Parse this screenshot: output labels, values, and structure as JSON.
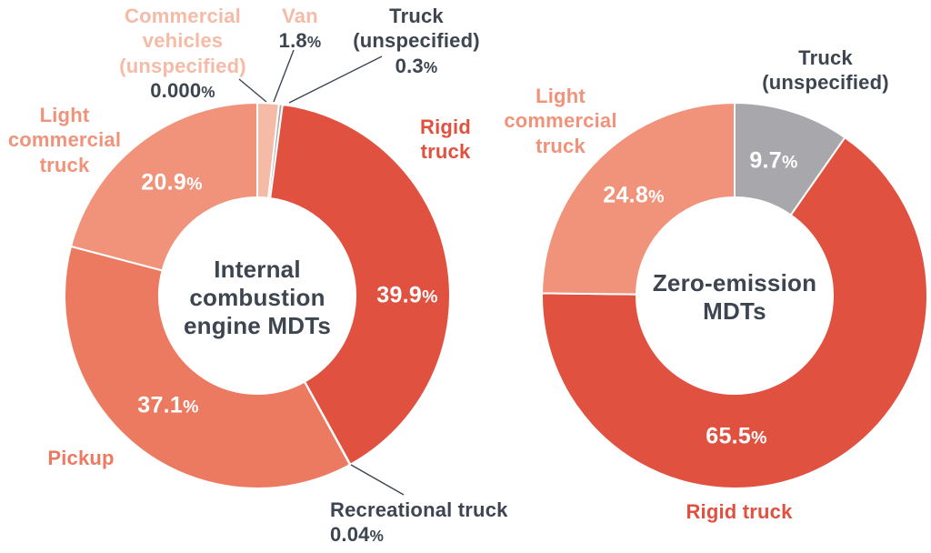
{
  "colors": {
    "background": "#FFFFFF",
    "dark_text": "#3D4551",
    "separator": "#FFFFFF",
    "rigid_truck": "#E05140",
    "pickup": "#EC7A60",
    "light_commercial_truck": "#F0937A",
    "van_peach": "#F5BBA6",
    "truck_unspecified_gray": "#A8A7AC"
  },
  "chart_data": [
    {
      "type": "pie",
      "variant": "donut",
      "title": "Internal combustion engine MDTs",
      "center_label_lines": [
        "Internal",
        "combustion",
        "engine MDTs"
      ],
      "start_angle_deg": 0,
      "direction": "clockwise",
      "legend_position": "outside-callouts",
      "segments": [
        {
          "label": "Commercial vehicles (unspecified)",
          "value_pct": 0.0,
          "display": "0.000%",
          "color_key": "van_peach"
        },
        {
          "label": "Van",
          "value_pct": 1.8,
          "display": "1.8%",
          "color_key": "van_peach"
        },
        {
          "label": "Truck (unspecified)",
          "value_pct": 0.3,
          "display": "0.3%",
          "color_key": "truck_unspecified_gray"
        },
        {
          "label": "Rigid truck",
          "value_pct": 39.9,
          "display": "39.9%",
          "color_key": "rigid_truck"
        },
        {
          "label": "Recreational truck",
          "value_pct": 0.04,
          "display": "0.04%",
          "color_key": "van_peach"
        },
        {
          "label": "Pickup",
          "value_pct": 37.1,
          "display": "37.1%",
          "color_key": "pickup"
        },
        {
          "label": "Light commercial truck",
          "value_pct": 20.9,
          "display": "20.9%",
          "color_key": "light_commercial_truck"
        }
      ]
    },
    {
      "type": "pie",
      "variant": "donut",
      "title": "Zero-emission MDTs",
      "center_label_lines": [
        "Zero-emission",
        "MDTs"
      ],
      "start_angle_deg": 0,
      "direction": "clockwise",
      "legend_position": "outside-callouts",
      "segments": [
        {
          "label": "Truck (unspecified)",
          "value_pct": 9.7,
          "display": "9.7%",
          "color_key": "truck_unspecified_gray"
        },
        {
          "label": "Rigid truck",
          "value_pct": 65.5,
          "display": "65.5%",
          "color_key": "rigid_truck"
        },
        {
          "label": "Light commercial truck",
          "value_pct": 24.8,
          "display": "24.8%",
          "color_key": "light_commercial_truck"
        }
      ]
    }
  ]
}
